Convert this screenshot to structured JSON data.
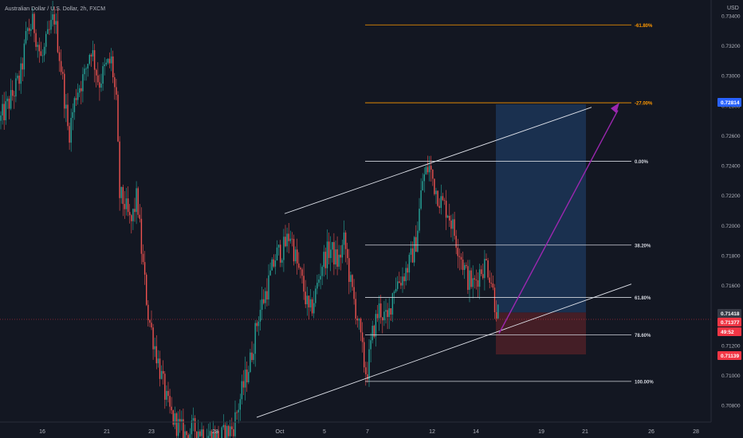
{
  "header": {
    "symbol": "Australian Dollar / U.S. Dollar, 2h, FXCM"
  },
  "price_axis": {
    "currency": "USD",
    "ticks": [
      "0.73400",
      "0.73200",
      "0.73000",
      "0.72800",
      "0.72600",
      "0.72400",
      "0.72200",
      "0.72000",
      "0.71800",
      "0.71600",
      "0.71400",
      "0.71200",
      "0.71000",
      "0.70800"
    ],
    "tags": {
      "last_price": "0.72814",
      "current": "0.71418",
      "bid": "0.71377",
      "countdown": "49:52",
      "stop": "0.71139"
    }
  },
  "time_axis": {
    "ticks": [
      "16",
      "21",
      "23",
      "28",
      "Oct",
      "5",
      "7",
      "12",
      "14",
      "19",
      "21",
      "26",
      "28"
    ]
  },
  "fib_labels": [
    "-61.80%",
    "-27.00%",
    "0.00%",
    "38.20%",
    "61.80%",
    "78.60%",
    "100.00%"
  ],
  "colors": {
    "background": "#131722",
    "up": "#26a69a",
    "down": "#ef5350",
    "fib_ext": "#ff9800",
    "fib_line": "#d1d4dc",
    "arrow": "#9c27b0",
    "target_zone": "#1e3a5f",
    "stop_zone": "#4a1f27",
    "tag_blue": "#2962ff",
    "tag_red": "#f23645"
  },
  "chart_data": {
    "type": "candlestick",
    "symbol": "AUDUSD",
    "timeframe": "2h",
    "y_range": [
      0.7068,
      0.735
    ],
    "x_ticks": [
      "16",
      "21",
      "23",
      "28",
      "Oct",
      "5",
      "7",
      "12",
      "14",
      "19",
      "21",
      "26",
      "28"
    ],
    "path": [
      [
        0,
        0.727
      ],
      [
        14,
        0.7285
      ],
      [
        26,
        0.73
      ],
      [
        34,
        0.733
      ],
      [
        42,
        0.7335
      ],
      [
        52,
        0.731
      ],
      [
        60,
        0.7325
      ],
      [
        68,
        0.734
      ],
      [
        78,
        0.73
      ],
      [
        86,
        0.726
      ],
      [
        96,
        0.729
      ],
      [
        106,
        0.73
      ],
      [
        114,
        0.732
      ],
      [
        124,
        0.7295
      ],
      [
        132,
        0.7305
      ],
      [
        140,
        0.731
      ],
      [
        146,
        0.728
      ],
      [
        150,
        0.722
      ],
      [
        156,
        0.7215
      ],
      [
        164,
        0.72
      ],
      [
        172,
        0.722
      ],
      [
        178,
        0.718
      ],
      [
        186,
        0.714
      ],
      [
        194,
        0.712
      ],
      [
        202,
        0.71
      ],
      [
        210,
        0.708
      ],
      [
        218,
        0.707
      ],
      [
        232,
        0.706
      ],
      [
        246,
        0.7065
      ],
      [
        260,
        0.706
      ],
      [
        276,
        0.7058
      ],
      [
        292,
        0.7065
      ],
      [
        304,
        0.709
      ],
      [
        314,
        0.711
      ],
      [
        324,
        0.714
      ],
      [
        336,
        0.716
      ],
      [
        346,
        0.718
      ],
      [
        356,
        0.7185
      ],
      [
        364,
        0.7195
      ],
      [
        372,
        0.7175
      ],
      [
        380,
        0.716
      ],
      [
        388,
        0.714
      ],
      [
        396,
        0.7155
      ],
      [
        404,
        0.7175
      ],
      [
        414,
        0.7185
      ],
      [
        424,
        0.7175
      ],
      [
        432,
        0.719
      ],
      [
        440,
        0.716
      ],
      [
        448,
        0.714
      ],
      [
        456,
        0.711
      ],
      [
        460,
        0.71
      ],
      [
        468,
        0.713
      ],
      [
        476,
        0.7145
      ],
      [
        486,
        0.7135
      ],
      [
        494,
        0.716
      ],
      [
        504,
        0.7165
      ],
      [
        514,
        0.7175
      ],
      [
        522,
        0.719
      ],
      [
        530,
        0.723
      ],
      [
        538,
        0.724
      ],
      [
        546,
        0.7225
      ],
      [
        554,
        0.7215
      ],
      [
        562,
        0.721
      ],
      [
        570,
        0.7195
      ],
      [
        578,
        0.718
      ],
      [
        586,
        0.7165
      ],
      [
        594,
        0.716
      ],
      [
        602,
        0.717
      ],
      [
        610,
        0.7175
      ],
      [
        616,
        0.7165
      ],
      [
        620,
        0.715
      ],
      [
        624,
        0.7142
      ],
      [
        628,
        0.714
      ]
    ],
    "fibonacci": [
      {
        "label": "-61.80%",
        "price": 0.7334
      },
      {
        "label": "-27.00%",
        "price": 0.7282
      },
      {
        "label": "0.00%",
        "price": 0.7243
      },
      {
        "label": "38.20%",
        "price": 0.7187
      },
      {
        "label": "61.80%",
        "price": 0.7152
      },
      {
        "label": "78.60%",
        "price": 0.7127
      },
      {
        "label": "100.00%",
        "price": 0.7096
      }
    ],
    "channel": {
      "upper": [
        [
          0.7208
        ],
        [
          0.7278
        ]
      ],
      "lower": [
        [
          0.7072
        ],
        [
          0.7162
        ]
      ]
    },
    "position": {
      "entry": 0.7142,
      "target": 0.7281,
      "stop": 0.7114
    },
    "grid": false,
    "legend": "none"
  }
}
